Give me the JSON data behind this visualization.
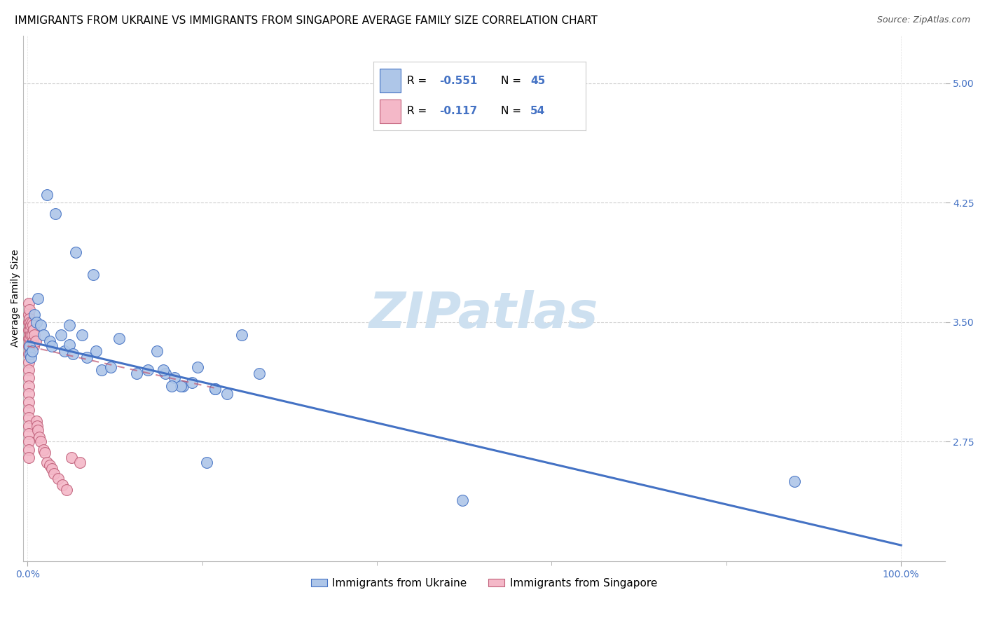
{
  "title": "IMMIGRANTS FROM UKRAINE VS IMMIGRANTS FROM SINGAPORE AVERAGE FAMILY SIZE CORRELATION CHART",
  "source": "Source: ZipAtlas.com",
  "ylabel": "Average Family Size",
  "ytick_labels": [
    "2.75",
    "3.50",
    "4.25",
    "5.00"
  ],
  "ytick_vals": [
    2.75,
    3.5,
    4.25,
    5.0
  ],
  "ymin": 2.0,
  "ymax": 5.3,
  "xmin": -0.005,
  "xmax": 1.05,
  "ukraine_color": "#aec6e8",
  "ukraine_line_color": "#4472c4",
  "singapore_color": "#f4b8c8",
  "singapore_line_color": "#c0607a",
  "ukraine_R": "-0.551",
  "ukraine_N": "45",
  "singapore_R": "-0.117",
  "singapore_N": "54",
  "ukraine_scatter_x": [
    0.022,
    0.032,
    0.055,
    0.075,
    0.008,
    0.01,
    0.012,
    0.015,
    0.018,
    0.025,
    0.028,
    0.038,
    0.042,
    0.048,
    0.052,
    0.062,
    0.068,
    0.078,
    0.085,
    0.095,
    0.105,
    0.125,
    0.138,
    0.148,
    0.158,
    0.168,
    0.178,
    0.188,
    0.048,
    0.175,
    0.215,
    0.228,
    0.245,
    0.265,
    0.195,
    0.215,
    0.155,
    0.165,
    0.205,
    0.498,
    0.878,
    0.002,
    0.003,
    0.004,
    0.005
  ],
  "ukraine_scatter_y": [
    4.3,
    4.18,
    3.94,
    3.8,
    3.55,
    3.5,
    3.65,
    3.48,
    3.42,
    3.38,
    3.35,
    3.42,
    3.32,
    3.36,
    3.3,
    3.42,
    3.28,
    3.32,
    3.2,
    3.22,
    3.4,
    3.18,
    3.2,
    3.32,
    3.18,
    3.15,
    3.1,
    3.12,
    3.48,
    3.1,
    3.08,
    3.05,
    3.42,
    3.18,
    3.22,
    3.08,
    3.2,
    3.1,
    2.62,
    2.38,
    2.5,
    3.35,
    3.3,
    3.28,
    3.32
  ],
  "singapore_scatter_x": [
    0.001,
    0.001,
    0.001,
    0.001,
    0.001,
    0.001,
    0.001,
    0.001,
    0.001,
    0.001,
    0.001,
    0.001,
    0.001,
    0.001,
    0.001,
    0.001,
    0.001,
    0.001,
    0.001,
    0.001,
    0.002,
    0.002,
    0.002,
    0.002,
    0.002,
    0.003,
    0.003,
    0.003,
    0.004,
    0.004,
    0.005,
    0.005,
    0.006,
    0.006,
    0.007,
    0.007,
    0.008,
    0.009,
    0.01,
    0.011,
    0.012,
    0.013,
    0.015,
    0.018,
    0.02,
    0.022,
    0.025,
    0.028,
    0.03,
    0.035,
    0.04,
    0.045,
    0.05,
    0.06
  ],
  "singapore_scatter_y": [
    3.62,
    3.55,
    3.5,
    3.45,
    3.4,
    3.35,
    3.3,
    3.25,
    3.2,
    3.15,
    3.1,
    3.05,
    3.0,
    2.95,
    2.9,
    2.85,
    2.8,
    2.75,
    2.7,
    2.65,
    3.58,
    3.52,
    3.48,
    3.42,
    3.38,
    3.5,
    3.45,
    3.4,
    3.48,
    3.42,
    3.5,
    3.42,
    3.48,
    3.38,
    3.45,
    3.35,
    3.42,
    3.38,
    2.88,
    2.85,
    2.82,
    2.78,
    2.75,
    2.7,
    2.68,
    2.62,
    2.6,
    2.58,
    2.55,
    2.52,
    2.48,
    2.45,
    2.65,
    2.62
  ],
  "ukraine_trendline_x": [
    0.0,
    1.0
  ],
  "ukraine_trendline_y": [
    3.38,
    2.1
  ],
  "singapore_trendline_x": [
    0.0,
    0.22
  ],
  "singapore_trendline_y": [
    3.35,
    3.08
  ],
  "grid_color": "#c8c8c8",
  "background_color": "#ffffff",
  "title_fontsize": 11,
  "axis_label_fontsize": 10,
  "tick_fontsize": 10,
  "legend_fontsize": 12,
  "watermark_text": "ZIPatlas",
  "watermark_color": "#cde0f0",
  "legend_ukraine_label": "Immigrants from Ukraine",
  "legend_singapore_label": "Immigrants from Singapore"
}
